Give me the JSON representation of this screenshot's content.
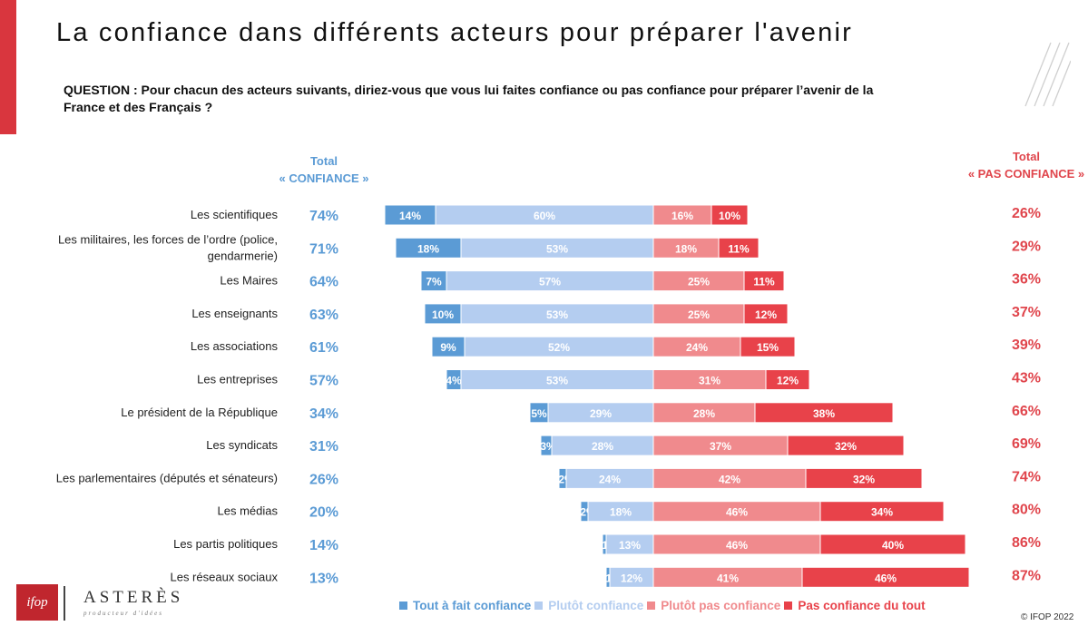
{
  "title": "La confiance dans différents acteurs pour préparer l'avenir",
  "question": "QUESTION : Pour chacun des acteurs suivants, diriez-vous que vous lui faites confiance ou pas confiance pour préparer l’avenir de la France et des Français ?",
  "header_left": {
    "line1": "Total",
    "line2": "« CONFIANCE »"
  },
  "header_right": {
    "line1": "Total",
    "line2": "« PAS CONFIANCE »"
  },
  "copyright": "© IFOP 2022",
  "logos": {
    "ifop": "ifop",
    "asteres": "ASTERÈS",
    "asteres_tagline": "producteur d'idées"
  },
  "colors": {
    "tout_a_fait_confiance": "#5b9bd5",
    "plutot_confiance": "#b4cdf0",
    "plutot_pas_confiance": "#f08a8d",
    "pas_confiance_du_tout": "#e8424a",
    "total_confiance_text": "#5b9bd5",
    "total_pas_confiance_text": "#e0454c",
    "accent": "#d9363e"
  },
  "chart_data": {
    "type": "bar",
    "orientation": "horizontal",
    "stacking": "diverging",
    "categories": [
      "Les scientifiques",
      "Les militaires, les forces de l’ordre (police, gendarmerie)",
      "Les Maires",
      "Les enseignants",
      "Les associations",
      "Les entreprises",
      "Le président de la République",
      "Les syndicats",
      "Les parlementaires (députés et sénateurs)",
      "Les médias",
      "Les partis politiques",
      "Les réseaux sociaux"
    ],
    "category_lines": [
      [
        "Les scientifiques"
      ],
      [
        "Les militaires, les forces de l’ordre (police,",
        "gendarmerie)"
      ],
      [
        "Les Maires"
      ],
      [
        "Les enseignants"
      ],
      [
        "Les associations"
      ],
      [
        "Les entreprises"
      ],
      [
        "Le président de la République"
      ],
      [
        "Les syndicats"
      ],
      [
        "Les parlementaires (députés et sénateurs)"
      ],
      [
        "Les médias"
      ],
      [
        "Les partis politiques"
      ],
      [
        "Les réseaux sociaux"
      ]
    ],
    "series": [
      {
        "name": "Tout à fait confiance",
        "side": "left",
        "values": [
          14,
          18,
          7,
          10,
          9,
          4,
          5,
          3,
          2,
          2,
          1,
          1
        ]
      },
      {
        "name": "Plutôt confiance",
        "side": "left",
        "values": [
          60,
          53,
          57,
          53,
          52,
          53,
          29,
          28,
          24,
          18,
          13,
          12
        ]
      },
      {
        "name": "Plutôt pas confiance",
        "side": "right",
        "values": [
          16,
          18,
          25,
          25,
          24,
          31,
          28,
          37,
          42,
          46,
          46,
          41
        ]
      },
      {
        "name": "Pas confiance du tout",
        "side": "right",
        "values": [
          10,
          11,
          11,
          12,
          15,
          12,
          38,
          32,
          32,
          34,
          40,
          46
        ]
      }
    ],
    "total_confiance": [
      74,
      71,
      64,
      63,
      61,
      57,
      34,
      31,
      26,
      20,
      14,
      13
    ],
    "total_pas_confiance": [
      26,
      29,
      36,
      37,
      39,
      43,
      66,
      69,
      74,
      80,
      86,
      87
    ],
    "value_suffix": "%",
    "legend_position": "bottom",
    "grid": false
  }
}
